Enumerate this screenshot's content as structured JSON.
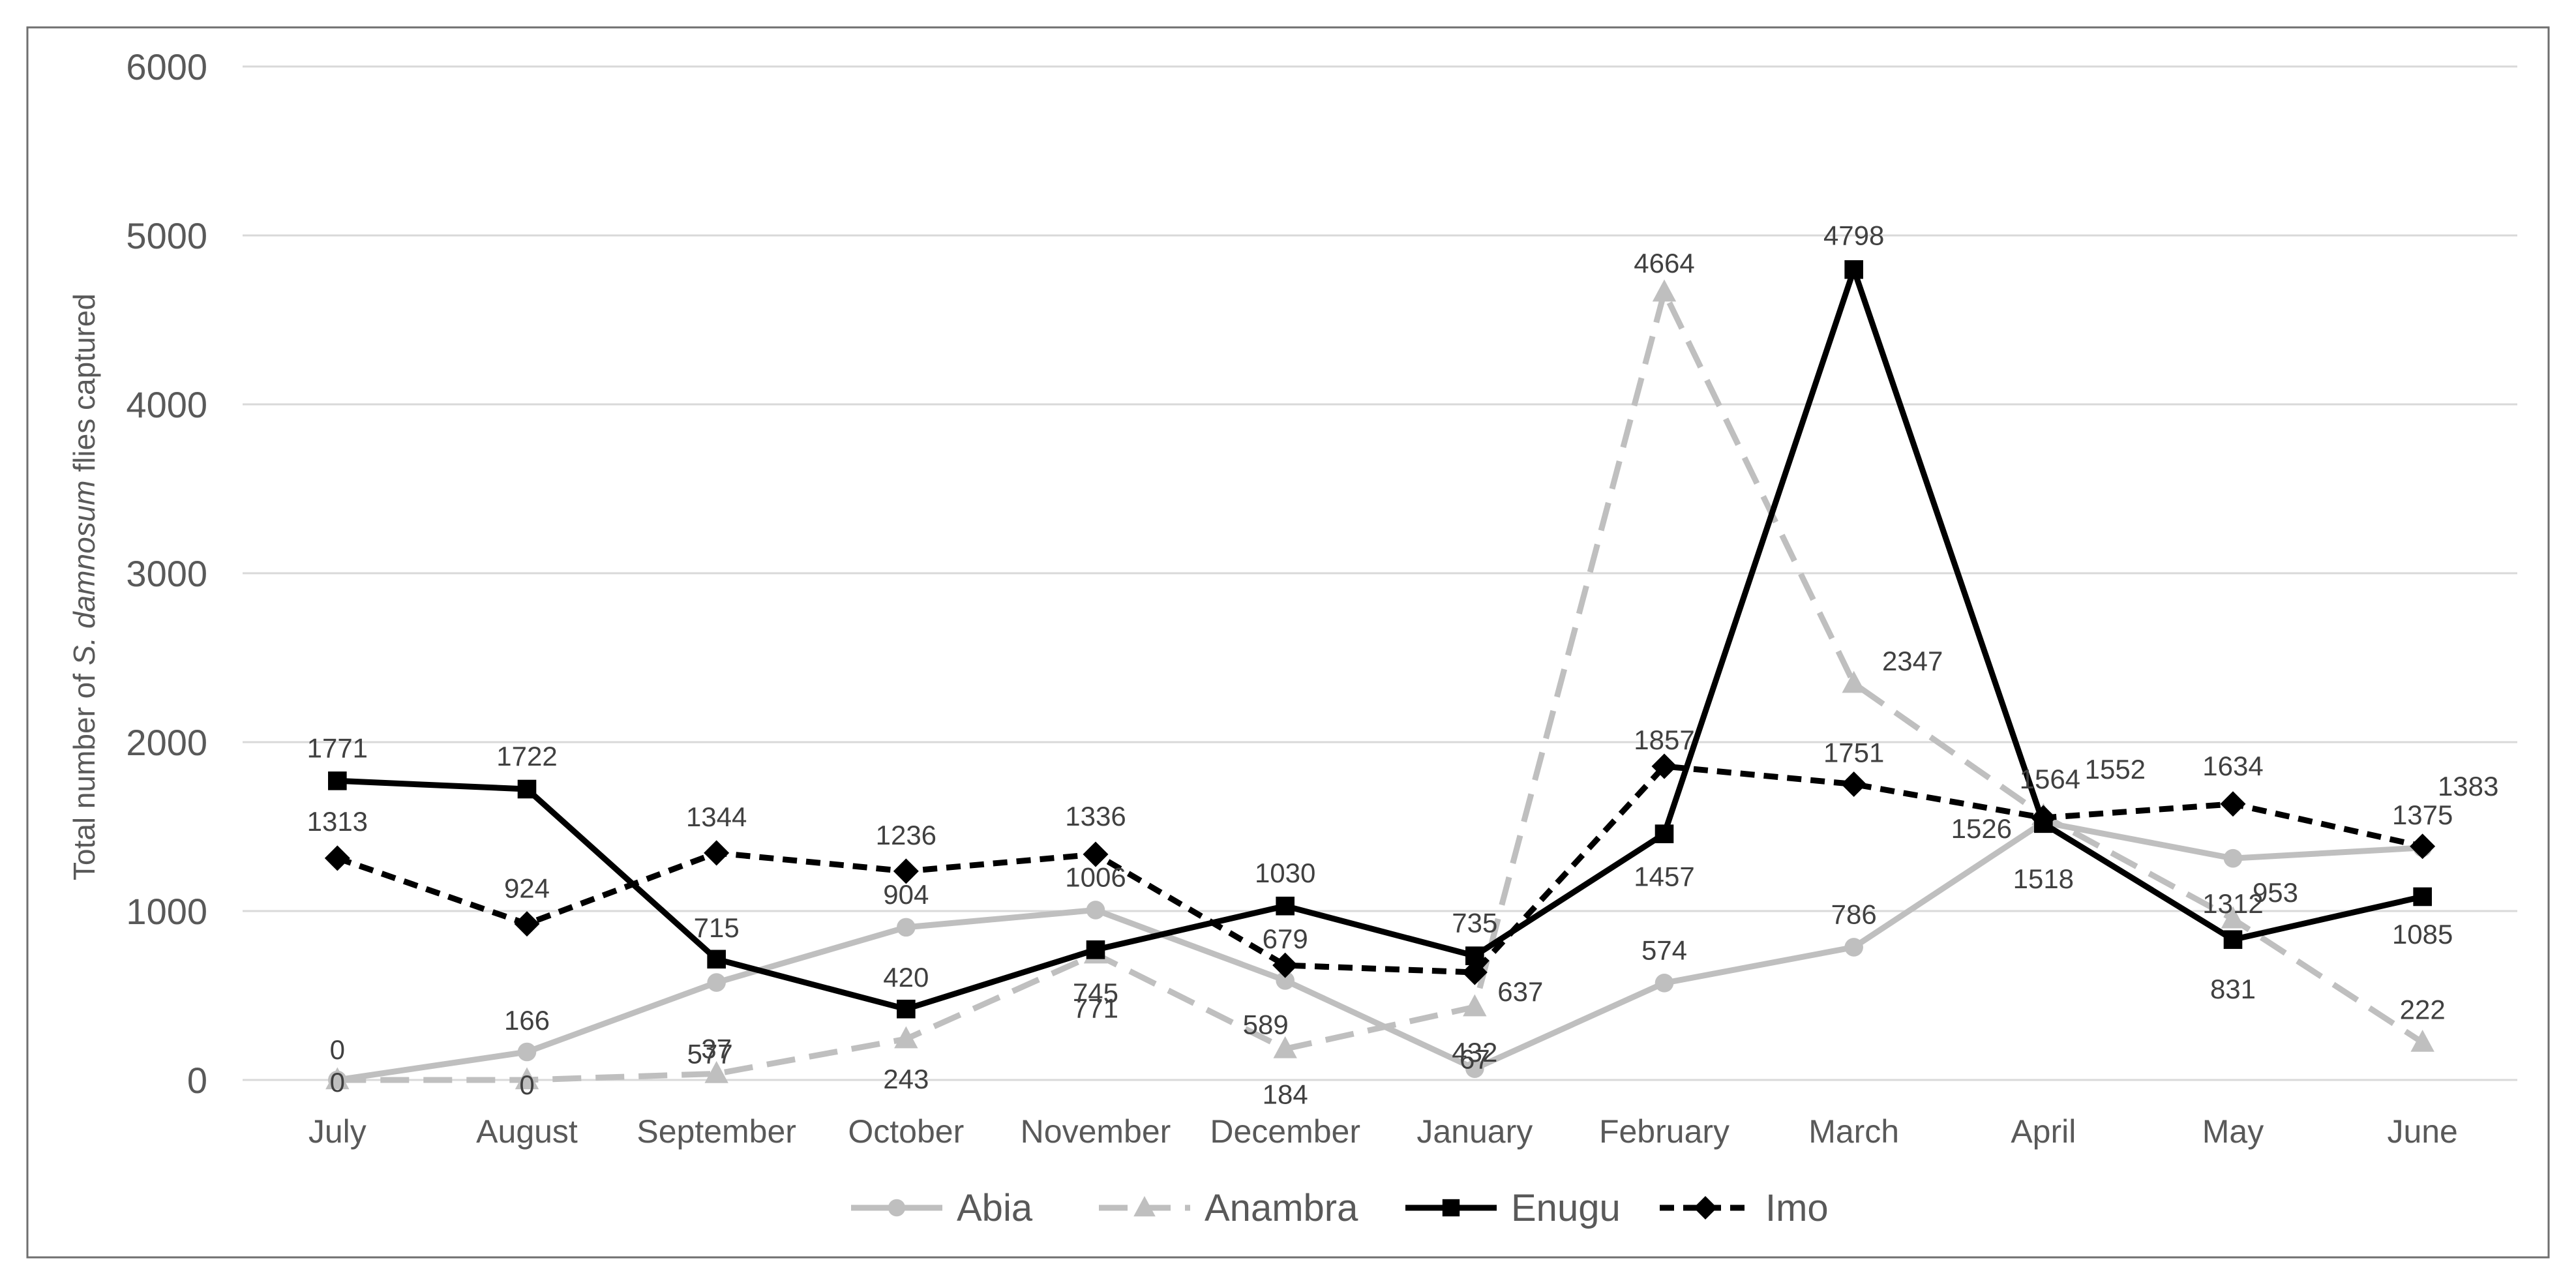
{
  "chart_data": {
    "type": "line",
    "title": "",
    "xlabel": "",
    "ylabel": {
      "pre": "Total number of ",
      "italic": "S. damnosum",
      "post": " flies captured"
    },
    "ylim": [
      0,
      6000
    ],
    "yticks": [
      0,
      1000,
      2000,
      3000,
      4000,
      5000,
      6000
    ],
    "grid": true,
    "legend_position": "bottom-center",
    "categories": [
      "July",
      "August",
      "September",
      "October",
      "November",
      "December",
      "January",
      "February",
      "March",
      "April",
      "May",
      "June"
    ],
    "series": [
      {
        "name": "Abia",
        "values": [
          0,
          166,
          577,
          904,
          1006,
          589,
          67,
          574,
          786,
          1526,
          1312,
          1375
        ],
        "color": "#bfbfbf",
        "dash": "solid",
        "marker": "circle"
      },
      {
        "name": "Anambra",
        "values": [
          0,
          0,
          37,
          243,
          745,
          184,
          432,
          4664,
          2347,
          1564,
          953,
          222
        ],
        "color": "#bfbfbf",
        "dash": "dashed",
        "marker": "triangle"
      },
      {
        "name": "Enugu",
        "values": [
          1771,
          1722,
          715,
          420,
          771,
          1030,
          735,
          1457,
          4798,
          1518,
          831,
          1085
        ],
        "color": "#000000",
        "dash": "solid",
        "marker": "square"
      },
      {
        "name": "Imo",
        "values": [
          1313,
          924,
          1344,
          1236,
          1336,
          679,
          637,
          1857,
          1751,
          1552,
          1634,
          1383
        ],
        "color": "#000000",
        "dash": "dotted",
        "marker": "diamond"
      }
    ]
  }
}
